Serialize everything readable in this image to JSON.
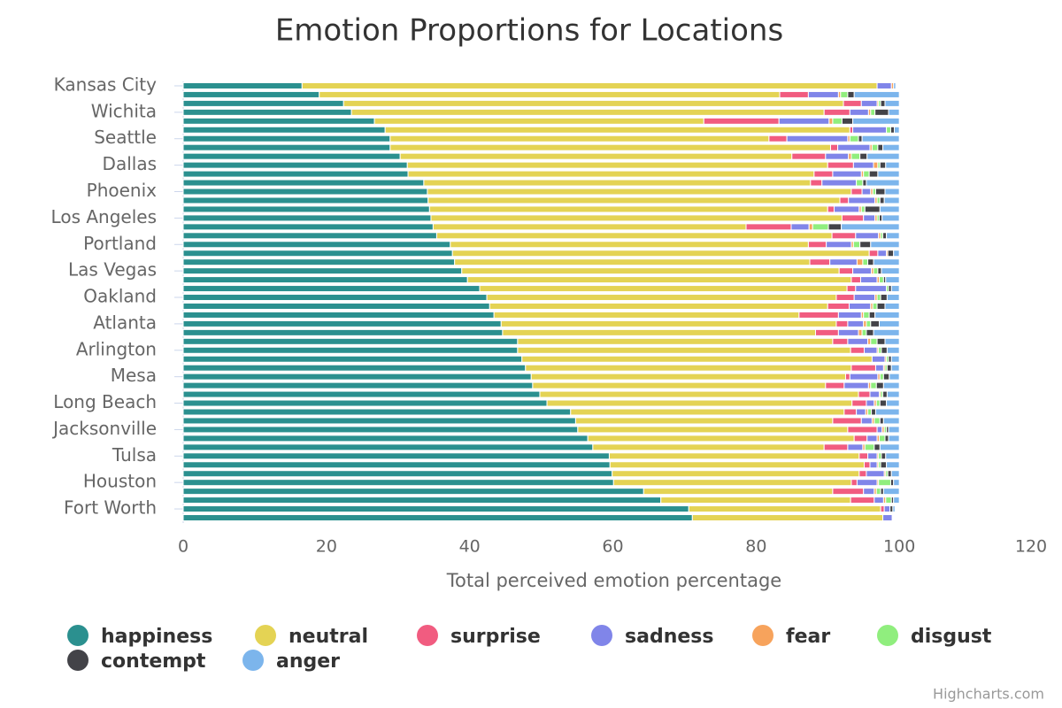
{
  "chart_data": {
    "type": "stacked-bar",
    "title": "Emotion Proportions for Locations",
    "x_label": "Total perceived emotion percentage",
    "credits": "Highcharts.com",
    "categories": [
      "Kansas City",
      null,
      null,
      "Wichita",
      null,
      null,
      "Seattle",
      null,
      null,
      "Dallas",
      null,
      null,
      "Phoenix",
      null,
      null,
      "Los Angeles",
      null,
      null,
      "Portland",
      null,
      null,
      "Las Vegas",
      null,
      null,
      "Oakland",
      null,
      null,
      "Atlanta",
      null,
      null,
      "Arlington",
      null,
      null,
      "Mesa",
      null,
      null,
      "Long Beach",
      null,
      null,
      "Jacksonville",
      null,
      null,
      "Tulsa",
      null,
      null,
      "Houston",
      null,
      null,
      "Fort Worth",
      null
    ],
    "xlim": [
      0,
      120
    ],
    "xticks": [
      0,
      20,
      40,
      60,
      80,
      100,
      120
    ],
    "grid": false,
    "series": [
      {
        "name": "happiness",
        "color": "#2b908f",
        "values": [
          16.6,
          19.0,
          22.4,
          23.5,
          26.7,
          28.2,
          28.9,
          28.9,
          30.3,
          31.3,
          31.4,
          33.6,
          34.1,
          34.2,
          34.4,
          34.6,
          34.9,
          35.4,
          37.3,
          37.6,
          37.9,
          38.9,
          39.7,
          41.4,
          42.4,
          42.8,
          43.4,
          44.4,
          44.6,
          46.7,
          46.7,
          47.3,
          47.8,
          48.6,
          48.8,
          49.8,
          50.8,
          54.1,
          54.8,
          55.1,
          56.5,
          57.2,
          59.5,
          59.6,
          59.9,
          60.1,
          64.3,
          66.7,
          70.6,
          71.1
        ]
      },
      {
        "name": "neutral",
        "color": "#e4d354",
        "values": [
          80.3,
          64.3,
          69.8,
          66.0,
          46.0,
          64.9,
          52.9,
          61.5,
          54.7,
          58.7,
          56.7,
          54.0,
          59.2,
          57.5,
          55.6,
          57.4,
          43.7,
          55.2,
          50.0,
          58.2,
          49.6,
          52.7,
          53.6,
          51.3,
          48.8,
          47.2,
          42.6,
          46.8,
          43.7,
          44.0,
          46.5,
          48.9,
          45.5,
          43.9,
          40.9,
          44.5,
          42.6,
          38.2,
          35.9,
          37.7,
          37.2,
          32.3,
          34.9,
          35.5,
          34.5,
          33.2,
          26.4,
          26.5,
          26.8,
          26.6
        ]
      },
      {
        "name": "surprise",
        "color": "#f15c80",
        "values": [
          0,
          4.0,
          2.5,
          3.6,
          10.5,
          0.4,
          2.5,
          1.0,
          4.7,
          3.6,
          2.6,
          1.6,
          1.5,
          1.2,
          0.9,
          3.0,
          6.3,
          3.3,
          2.5,
          1.2,
          2.8,
          1.9,
          1.3,
          1.2,
          2.5,
          3.0,
          5.5,
          1.6,
          3.2,
          2.1,
          1.9,
          0,
          3.4,
          0.6,
          2.6,
          1.6,
          2.0,
          1.7,
          4.0,
          4.1,
          1.8,
          3.3,
          1.2,
          0.8,
          1.0,
          0.8,
          4.3,
          3.3,
          0.5,
          0
        ]
      },
      {
        "name": "sadness",
        "color": "#8085e9",
        "values": [
          2.0,
          4.2,
          2.2,
          2.6,
          7.0,
          4.7,
          8.5,
          4.5,
          3.2,
          2.8,
          4.0,
          4.8,
          1.2,
          3.7,
          3.5,
          1.6,
          2.5,
          3.2,
          3.5,
          1.2,
          3.8,
          2.6,
          2.3,
          4.3,
          2.9,
          3.0,
          3.2,
          2.2,
          2.8,
          2.8,
          1.8,
          1.8,
          1.1,
          3.9,
          3.4,
          1.3,
          1.1,
          1.3,
          1.5,
          0.7,
          1.4,
          2.1,
          1.3,
          1.0,
          2.5,
          2.8,
          1.5,
          1.3,
          0.8,
          1.3
        ]
      },
      {
        "name": "fear",
        "color": "#f7a35c",
        "values": [
          0.3,
          0.3,
          0.2,
          0.3,
          0.5,
          0,
          0.3,
          0.3,
          0.4,
          0.6,
          0.3,
          0,
          0.3,
          0.3,
          0.3,
          0.3,
          0.5,
          0.3,
          0.3,
          0.2,
          0.8,
          0.3,
          0.3,
          0,
          0.3,
          0.3,
          0.3,
          0.4,
          0.5,
          0.4,
          0.2,
          0.2,
          0.2,
          0.3,
          0.3,
          0.2,
          0.3,
          0.3,
          0.3,
          0.3,
          0.3,
          0.3,
          0.2,
          0.2,
          0.2,
          0.2,
          0.3,
          0.3,
          0,
          0
        ]
      },
      {
        "name": "disgust",
        "color": "#90ee7e",
        "values": [
          0,
          1.0,
          0.3,
          0.6,
          1.3,
          0.6,
          1.2,
          0.8,
          1.2,
          0.3,
          0.8,
          0.9,
          0.4,
          0.4,
          0.5,
          0.3,
          2.2,
          0.3,
          0.9,
          0,
          0.7,
          0.6,
          0.6,
          0.3,
          0.5,
          0.6,
          0.8,
          0.6,
          0.6,
          0.9,
          0.4,
          0.3,
          0.3,
          0.5,
          0.8,
          0.3,
          0.5,
          0.5,
          0.8,
          0.3,
          0.8,
          1.3,
          0.4,
          0.3,
          0.3,
          1.7,
          0.6,
          0.8,
          0,
          0
        ]
      },
      {
        "name": "contempt",
        "color": "#434348",
        "values": [
          0,
          0.9,
          0.6,
          1.9,
          1.5,
          0.5,
          0.5,
          0.7,
          1.0,
          0.8,
          1.2,
          0.5,
          1.3,
          0.6,
          2.1,
          0.4,
          1.8,
          0.5,
          1.5,
          0.8,
          0.8,
          0.5,
          0.3,
          0.4,
          0.9,
          1.1,
          0.8,
          1.2,
          1.0,
          1.1,
          0.8,
          0.4,
          0.6,
          0.8,
          1.0,
          0.6,
          0.9,
          0.6,
          0.5,
          0.3,
          0.5,
          0.8,
          0.6,
          0.8,
          0.5,
          0.4,
          0.4,
          0.3,
          0.4,
          0
        ]
      },
      {
        "name": "anger",
        "color": "#7cb5ec",
        "values": [
          0.3,
          6.3,
          2.0,
          1.5,
          6.5,
          0.7,
          5.2,
          2.3,
          4.5,
          1.9,
          3.0,
          4.6,
          2.0,
          2.1,
          2.7,
          2.4,
          8.1,
          1.8,
          4.0,
          0.8,
          3.6,
          2.5,
          1.9,
          1.1,
          1.7,
          2.0,
          3.4,
          2.8,
          3.6,
          2.0,
          1.7,
          1.1,
          1.1,
          1.4,
          2.2,
          1.7,
          1.8,
          3.3,
          2.2,
          1.5,
          1.5,
          2.7,
          1.9,
          1.8,
          1.1,
          0.8,
          2.2,
          0.8,
          0.3,
          0
        ]
      }
    ]
  }
}
